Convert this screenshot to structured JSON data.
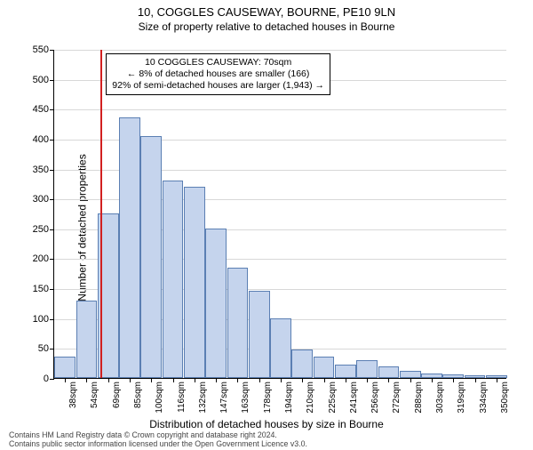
{
  "title": "10, COGGLES CAUSEWAY, BOURNE, PE10 9LN",
  "subtitle": "Size of property relative to detached houses in Bourne",
  "ylabel": "Number of detached properties",
  "xlabel": "Distribution of detached houses by size in Bourne",
  "chart": {
    "type": "histogram",
    "ylim": [
      0,
      550
    ],
    "ytick_step": 50,
    "bar_fill": "#c5d4ed",
    "bar_border": "#5b7fb3",
    "grid_color": "#d8d8d8",
    "background": "#ffffff",
    "refline_color": "#d22020",
    "refline_x": 70,
    "categories": [
      "38sqm",
      "54sqm",
      "69sqm",
      "85sqm",
      "100sqm",
      "116sqm",
      "132sqm",
      "147sqm",
      "163sqm",
      "178sqm",
      "194sqm",
      "210sqm",
      "225sqm",
      "241sqm",
      "256sqm",
      "272sqm",
      "288sqm",
      "303sqm",
      "319sqm",
      "334sqm",
      "350sqm"
    ],
    "values": [
      35,
      130,
      275,
      435,
      405,
      330,
      320,
      250,
      185,
      145,
      100,
      48,
      35,
      22,
      30,
      20,
      12,
      8,
      6,
      5,
      4
    ]
  },
  "annotation": {
    "line1": "10 COGGLES CAUSEWAY: 70sqm",
    "line2": "← 8% of detached houses are smaller (166)",
    "line3": "92% of semi-detached houses are larger (1,943) →"
  },
  "footer": {
    "line1": "Contains HM Land Registry data © Crown copyright and database right 2024.",
    "line2": "Contains public sector information licensed under the Open Government Licence v3.0."
  }
}
